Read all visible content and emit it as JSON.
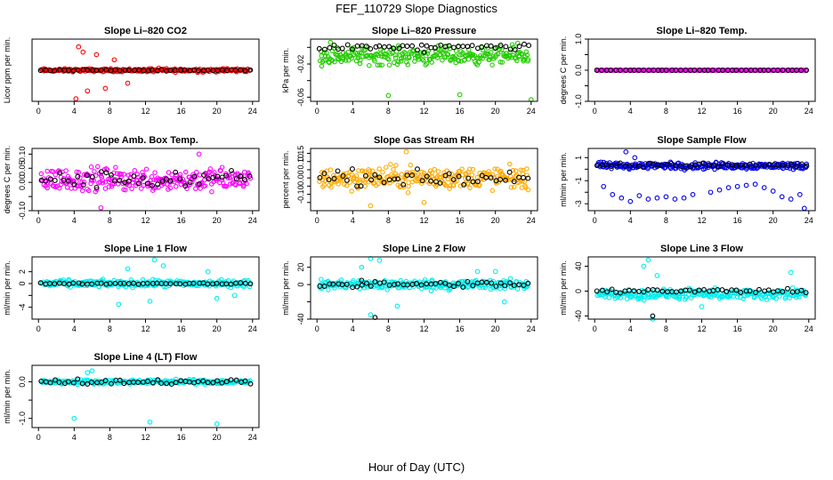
{
  "page": {
    "title": "FEF_110729  Slope Diagnostics",
    "x_axis_label": "Hour of Day (UTC)"
  },
  "chart_data": [
    {
      "type": "scatter",
      "title": "Slope Li–820 CO2",
      "ylabel": "Licor ppm per min.",
      "xlim": [
        0,
        24
      ],
      "ylim": [
        -1.2,
        1.2
      ],
      "xticks": [
        0,
        4,
        8,
        12,
        16,
        20,
        24
      ],
      "yticks": [],
      "ytick_labels": [],
      "marker_colors": {
        "all": "#ff0000",
        "sel": "#000000"
      },
      "series": [
        {
          "name": "",
          "role": "all",
          "center": 0.0,
          "spread": 0.05,
          "spread_late": 0.06,
          "outliers": [
            [
              4.5,
              0.9
            ],
            [
              5.0,
              0.7
            ],
            [
              5.5,
              -0.8
            ],
            [
              6.5,
              0.6
            ],
            [
              7.5,
              -0.7
            ],
            [
              4.2,
              -1.1
            ],
            [
              10.0,
              -0.5
            ],
            [
              8.5,
              0.4
            ]
          ]
        },
        {
          "name": "",
          "role": "sel",
          "center": 0.0,
          "spread": 0.02,
          "spread_late": 0.02,
          "outliers": []
        }
      ]
    },
    {
      "type": "scatter",
      "title": "Slope Li–820 Pressure",
      "ylabel": "kPa per min.",
      "xlim": [
        0,
        24
      ],
      "ylim": [
        -0.065,
        0.01
      ],
      "xticks": [
        0,
        4,
        8,
        12,
        16,
        20,
        24
      ],
      "yticks": [
        -0.06,
        -0.04,
        -0.02,
        0.0
      ],
      "ytick_labels": [
        "-0.06",
        "",
        "-0.02",
        ""
      ],
      "marker_colors": {
        "all": "#22cc00",
        "sel": "#000000"
      },
      "series": [
        {
          "name": "",
          "role": "all",
          "center": -0.01,
          "spread": 0.009,
          "spread_late": 0.009,
          "outliers": [
            [
              8.0,
              -0.058
            ],
            [
              16.0,
              -0.057
            ],
            [
              24.0,
              -0.063
            ],
            [
              1.5,
              0.006
            ],
            [
              22.5,
              0.005
            ]
          ]
        },
        {
          "name": "",
          "role": "sel",
          "center": 0.0,
          "spread": 0.003,
          "spread_late": 0.003,
          "outliers": [
            [
              12.0,
              -0.006
            ]
          ]
        }
      ]
    },
    {
      "type": "scatter",
      "title": "Slope Li–820 Temp.",
      "ylabel": "degrees C per min.",
      "xlim": [
        0,
        24
      ],
      "ylim": [
        -1.0,
        1.0
      ],
      "xticks": [
        0,
        4,
        8,
        12,
        16,
        20,
        24
      ],
      "yticks": [
        -1.0,
        -0.5,
        0.0,
        0.5,
        1.0
      ],
      "ytick_labels": [
        "-1.0",
        "",
        "0.0",
        "",
        "1.0"
      ],
      "marker_colors": {
        "all": "#ff00ff",
        "sel": "#000000"
      },
      "series": [
        {
          "name": "",
          "role": "all",
          "center": 0.0,
          "spread": 0.0,
          "spread_late": 0.0,
          "outliers": []
        },
        {
          "name": "",
          "role": "sel",
          "center": 0.0,
          "spread": 0.0,
          "spread_late": 0.0,
          "outliers": []
        }
      ]
    },
    {
      "type": "scatter",
      "title": "Slope Amb. Box Temp.",
      "ylabel": "degrees C per min.",
      "xlim": [
        0,
        24
      ],
      "ylim": [
        -0.1,
        0.12
      ],
      "xticks": [
        0,
        4,
        8,
        12,
        16,
        20,
        24
      ],
      "yticks": [
        -0.1,
        -0.05,
        0.0,
        0.05,
        0.1
      ],
      "ytick_labels": [
        "-0.10",
        "",
        "0.00",
        "0.05",
        "0.10"
      ],
      "marker_colors": {
        "all": "#ff00ff",
        "sel": "#000000"
      },
      "series": [
        {
          "name": "",
          "role": "all",
          "center": 0.01,
          "spread": 0.035,
          "spread_late": 0.035,
          "outliers": [
            [
              18.0,
              0.1
            ],
            [
              7.0,
              -0.09
            ]
          ]
        },
        {
          "name": "",
          "role": "sel",
          "center": 0.01,
          "spread": 0.025,
          "spread_late": 0.025,
          "outliers": []
        }
      ]
    },
    {
      "type": "scatter",
      "title": "Slope Gas Stream RH",
      "ylabel": "percent per min.",
      "xlim": [
        0,
        24
      ],
      "ylim": [
        -0.2,
        0.18
      ],
      "xticks": [
        0,
        4,
        8,
        12,
        16,
        20,
        24
      ],
      "yticks": [
        -0.15,
        -0.1,
        -0.05,
        0.0,
        0.05,
        0.1,
        0.15
      ],
      "ytick_labels": [
        "",
        "-0.10",
        "",
        "0.00",
        "",
        "0.10",
        "0.15"
      ],
      "marker_colors": {
        "all": "#ffaa00",
        "sel": "#000000"
      },
      "series": [
        {
          "name": "",
          "role": "all",
          "center": 0.0,
          "spread": 0.06,
          "spread_late": 0.06,
          "outliers": [
            [
              6.0,
              -0.17
            ],
            [
              10.0,
              0.16
            ],
            [
              12.0,
              -0.15
            ]
          ]
        },
        {
          "name": "",
          "role": "sel",
          "center": 0.0,
          "spread": 0.04,
          "spread_late": 0.04,
          "outliers": []
        }
      ]
    },
    {
      "type": "scatter",
      "title": "Slope Sample Flow",
      "ylabel": "ml/min per min.",
      "xlim": [
        0,
        24
      ],
      "ylim": [
        -3.6,
        1.8
      ],
      "xticks": [
        0,
        4,
        8,
        12,
        16,
        20,
        24
      ],
      "yticks": [
        -3,
        -2,
        -1,
        0,
        1
      ],
      "ytick_labels": [
        "-3",
        "",
        "-1",
        "",
        "1"
      ],
      "marker_colors": {
        "all": "#0000ee",
        "sel": "#000000"
      },
      "series": [
        {
          "name": "",
          "role": "all",
          "center": 0.3,
          "spread": 0.25,
          "spread_late": 0.25,
          "outliers": [
            [
              1.0,
              -1.5
            ],
            [
              2.0,
              -2.2
            ],
            [
              3.0,
              -2.5
            ],
            [
              4.0,
              -2.8
            ],
            [
              5.0,
              -2.3
            ],
            [
              6.0,
              -2.6
            ],
            [
              7.0,
              -2.5
            ],
            [
              8.0,
              -2.4
            ],
            [
              9.0,
              -2.6
            ],
            [
              10.0,
              -2.5
            ],
            [
              11.0,
              -2.2
            ],
            [
              13.0,
              -2.0
            ],
            [
              14.0,
              -1.8
            ],
            [
              15.0,
              -1.6
            ],
            [
              16.0,
              -1.5
            ],
            [
              17.0,
              -1.4
            ],
            [
              18.0,
              -1.3
            ],
            [
              19.0,
              -1.6
            ],
            [
              20.0,
              -1.9
            ],
            [
              21.0,
              -2.4
            ],
            [
              22.0,
              -2.6
            ],
            [
              23.0,
              -2.2
            ],
            [
              23.5,
              -3.4
            ],
            [
              3.5,
              1.5
            ],
            [
              4.5,
              1.0
            ]
          ]
        },
        {
          "name": "",
          "role": "sel",
          "center": 0.35,
          "spread": 0.15,
          "spread_late": 0.15,
          "outliers": []
        }
      ]
    },
    {
      "type": "scatter",
      "title": "Slope Line 1 Flow",
      "ylabel": "ml/min per min.",
      "xlim": [
        0,
        24
      ],
      "ylim": [
        -6,
        4.5
      ],
      "xticks": [
        0,
        4,
        8,
        12,
        16,
        20,
        24
      ],
      "yticks": [
        -4,
        -2,
        0,
        2
      ],
      "ytick_labels": [
        "-4",
        "",
        "0",
        "2"
      ],
      "marker_colors": {
        "all": "#00eeee",
        "sel": "#000000"
      },
      "series": [
        {
          "name": "",
          "role": "all",
          "center": 0.0,
          "spread": 0.5,
          "spread_late": 0.5,
          "outliers": [
            [
              9.0,
              -3.5
            ],
            [
              10.0,
              2.5
            ],
            [
              13.0,
              4.0
            ],
            [
              14.0,
              3.0
            ],
            [
              12.5,
              -3.0
            ],
            [
              19.0,
              2.0
            ],
            [
              20.0,
              -2.5
            ],
            [
              22.0,
              -2.0
            ]
          ]
        },
        {
          "name": "",
          "role": "sel",
          "center": 0.0,
          "spread": 0.1,
          "spread_late": 0.1,
          "outliers": []
        }
      ]
    },
    {
      "type": "scatter",
      "title": "Slope Line 2 Flow",
      "ylabel": "ml/min per min.",
      "xlim": [
        0,
        24
      ],
      "ylim": [
        -40,
        32
      ],
      "xticks": [
        0,
        4,
        8,
        12,
        16,
        20,
        24
      ],
      "yticks": [
        -40,
        -20,
        0,
        20
      ],
      "ytick_labels": [
        "-40",
        "",
        "0",
        "20"
      ],
      "marker_colors": {
        "all": "#00eeee",
        "sel": "#000000"
      },
      "series": [
        {
          "name": "",
          "role": "all",
          "center": 0.0,
          "spread": 5.0,
          "spread_late": 5.0,
          "outliers": [
            [
              5.0,
              20.0
            ],
            [
              6.0,
              30.0
            ],
            [
              7.0,
              28.0
            ],
            [
              6.0,
              -35.0
            ],
            [
              9.0,
              -25.0
            ],
            [
              18.0,
              15.0
            ],
            [
              20.0,
              15.0
            ],
            [
              21.0,
              -20.0
            ]
          ]
        },
        {
          "name": "",
          "role": "sel",
          "center": 0.0,
          "spread": 3.0,
          "spread_late": 3.0,
          "outliers": [
            [
              6.5,
              -38.0
            ],
            [
              5.0,
              5.0
            ]
          ]
        }
      ]
    },
    {
      "type": "scatter",
      "title": "Slope Line 3 Flow",
      "ylabel": "ml/min per min.",
      "xlim": [
        0,
        24
      ],
      "ylim": [
        -45,
        55
      ],
      "xticks": [
        0,
        4,
        8,
        12,
        16,
        20,
        24
      ],
      "yticks": [
        -40,
        0,
        40
      ],
      "ytick_labels": [
        "-40",
        "0",
        "40"
      ],
      "marker_colors": {
        "all": "#00eeee",
        "sel": "#000000"
      },
      "series": [
        {
          "name": "",
          "role": "all",
          "center": -5.0,
          "spread": 7.0,
          "spread_late": 7.0,
          "outliers": [
            [
              5.5,
              40.0
            ],
            [
              6.0,
              50.0
            ],
            [
              7.0,
              25.0
            ],
            [
              6.5,
              -45.0
            ],
            [
              22.0,
              30.0
            ],
            [
              12.0,
              -25.0
            ]
          ]
        },
        {
          "name": "",
          "role": "sel",
          "center": 0.0,
          "spread": 3.0,
          "spread_late": 3.0,
          "outliers": [
            [
              6.5,
              -40.0
            ]
          ]
        }
      ]
    },
    {
      "type": "scatter",
      "title": "Slope Line 4 (LT) Flow",
      "ylabel": "ml/min per min.",
      "xlim": [
        0,
        24
      ],
      "ylim": [
        -1.25,
        0.45
      ],
      "xticks": [
        0,
        4,
        8,
        12,
        16,
        20,
        24
      ],
      "yticks": [
        -1.0,
        -0.5,
        0.0
      ],
      "ytick_labels": [
        "-1.0",
        "",
        "0.0"
      ],
      "marker_colors": {
        "all": "#00eeee",
        "sel": "#000000"
      },
      "series": [
        {
          "name": "",
          "role": "all",
          "center": 0.0,
          "spread": 0.05,
          "spread_late": 0.05,
          "outliers": [
            [
              4.0,
              -1.0
            ],
            [
              12.5,
              -1.1
            ],
            [
              20.0,
              -1.15
            ],
            [
              6.0,
              0.3
            ],
            [
              5.5,
              0.25
            ]
          ]
        },
        {
          "name": "",
          "role": "sel",
          "center": 0.0,
          "spread": 0.05,
          "spread_late": 0.05,
          "outliers": []
        }
      ]
    }
  ]
}
